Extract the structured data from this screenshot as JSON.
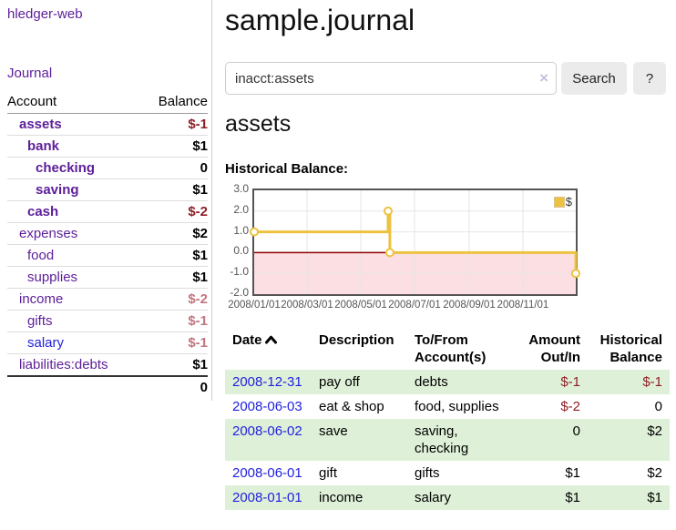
{
  "app": {
    "name": "hledger-web",
    "nav": {
      "journal": "Journal"
    }
  },
  "sidebar": {
    "headers": {
      "account": "Account",
      "balance": "Balance"
    },
    "accounts": [
      {
        "name": "assets",
        "balance": "$-1",
        "indent": 1,
        "bold": true,
        "balance_style": "neg"
      },
      {
        "name": "bank",
        "balance": "$1",
        "indent": 2,
        "bold": true,
        "balance_style": "pos"
      },
      {
        "name": "checking",
        "balance": "0",
        "indent": 3,
        "bold": true,
        "balance_style": "pos"
      },
      {
        "name": "saving",
        "balance": "$1",
        "indent": 3,
        "bold": true,
        "balance_style": "pos"
      },
      {
        "name": "cash",
        "balance": "$-2",
        "indent": 2,
        "bold": true,
        "balance_style": "neg"
      },
      {
        "name": "expenses",
        "balance": "$2",
        "indent": 1,
        "bold": false,
        "balance_style": "pos"
      },
      {
        "name": "food",
        "balance": "$1",
        "indent": 2,
        "bold": false,
        "balance_style": "pos"
      },
      {
        "name": "supplies",
        "balance": "$1",
        "indent": 2,
        "bold": false,
        "balance_style": "pos"
      },
      {
        "name": "income",
        "balance": "$-2",
        "indent": 1,
        "bold": false,
        "balance_style": "neg-faded"
      },
      {
        "name": "gifts",
        "balance": "$-1",
        "indent": 2,
        "bold": false,
        "balance_style": "neg-faded"
      },
      {
        "name": "salary",
        "balance": "$-1",
        "indent": 2,
        "bold": false,
        "balance_style": "neg-faded",
        "link_style": "unvisited"
      },
      {
        "name": "liabilities:debts",
        "balance": "$1",
        "indent": 1,
        "bold": false,
        "balance_style": "pos"
      }
    ],
    "total": "0"
  },
  "header": {
    "title": "sample.journal"
  },
  "search": {
    "value": "inacct:assets",
    "clear_icon": "×",
    "submit_label": "Search",
    "help_label": "?"
  },
  "content": {
    "account_heading": "assets",
    "chart_heading": "Historical Balance:"
  },
  "chart_data": {
    "type": "line",
    "step": true,
    "series": [
      {
        "name": "$",
        "color": "#edc240",
        "points": [
          [
            "2008/01/01",
            1.0
          ],
          [
            "2008/06/01",
            2.0
          ],
          [
            "2008/06/03",
            0.0
          ],
          [
            "2008/12/31",
            -1.0
          ]
        ]
      }
    ],
    "x_range": [
      "2008/01/01",
      "2008/12/31"
    ],
    "x_ticks": [
      "2008/01/01",
      "2008/03/01",
      "2008/05/01",
      "2008/07/01",
      "2008/09/01",
      "2008/11/01"
    ],
    "y_ticks": [
      "3.0",
      "2.0",
      "1.0",
      "0.0",
      "-1.0",
      "-2.0"
    ],
    "y_range": [
      -2,
      3
    ],
    "grid": true,
    "legend": {
      "label": "$",
      "position": "top-right"
    },
    "marker": "open-circle",
    "grid_color": "#e5e5e5",
    "border_color": "#545454",
    "negative_region_color": "#fcdfe2",
    "zero_line_color": "#8b0000"
  },
  "register": {
    "headers": {
      "date": "Date",
      "description": "Description",
      "accounts": "To/From Account(s)",
      "amount": "Amount Out/In",
      "balance": "Historical Balance"
    },
    "sort_icon": "chevron-up",
    "rows": [
      {
        "date": "2008-12-31",
        "description": "pay off",
        "accounts": "debts",
        "amount": "$-1",
        "amount_style": "neg",
        "balance": "$-1",
        "balance_style": "neg"
      },
      {
        "date": "2008-06-03",
        "description": "eat & shop",
        "accounts": "food, supplies",
        "amount": "$-2",
        "amount_style": "neg",
        "balance": "0",
        "balance_style": "pos"
      },
      {
        "date": "2008-06-02",
        "description": "save",
        "accounts": "saving, checking",
        "amount": "0",
        "amount_style": "pos",
        "balance": "$2",
        "balance_style": "pos"
      },
      {
        "date": "2008-06-01",
        "description": "gift",
        "accounts": "gifts",
        "amount": "$1",
        "amount_style": "pos",
        "balance": "$2",
        "balance_style": "pos"
      },
      {
        "date": "2008-01-01",
        "description": "income",
        "accounts": "salary",
        "amount": "$1",
        "amount_style": "pos",
        "balance": "$1",
        "balance_style": "pos"
      }
    ]
  },
  "colors": {
    "link_visited": "#5c1e99",
    "link_unvisited": "#2222dd",
    "negative": "#8e1f25",
    "negative_faded": "#c1767e",
    "row_stripe": "#dff0d8",
    "chart_line": "#edc240"
  }
}
